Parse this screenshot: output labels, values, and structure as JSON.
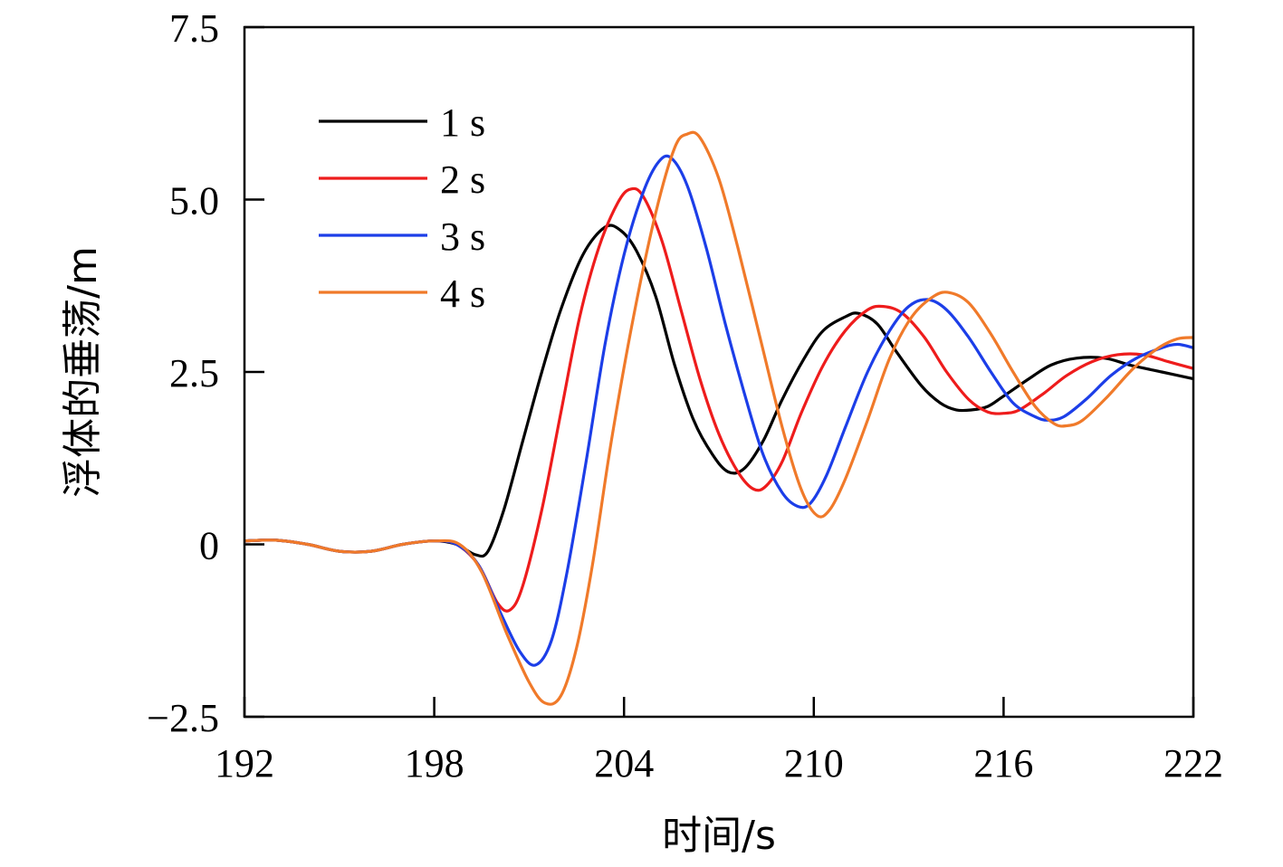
{
  "chart_data": {
    "type": "line",
    "title": "",
    "xlabel": "时间/s",
    "ylabel": "浮体的垂荡/m",
    "xlim": [
      192,
      222
    ],
    "ylim": [
      -2.5,
      7.5
    ],
    "x_ticks": [
      192,
      198,
      204,
      210,
      216,
      222
    ],
    "x_tick_labels": [
      "192",
      "198",
      "204",
      "210",
      "216",
      "222"
    ],
    "y_ticks": [
      -2.5,
      0,
      2.5,
      5.0,
      7.5
    ],
    "y_tick_labels": [
      "−2.5",
      "0",
      "2.5",
      "5.0",
      "7.5"
    ],
    "grid": false,
    "legend_position": "top-left",
    "series": [
      {
        "name": "1 s",
        "color": "#000000",
        "points": [
          [
            192,
            0.05
          ],
          [
            193,
            0.06
          ],
          [
            194,
            0.0
          ],
          [
            195,
            -0.1
          ],
          [
            196,
            -0.1
          ],
          [
            197,
            0.0
          ],
          [
            198,
            0.05
          ],
          [
            198.7,
            0.0
          ],
          [
            199.3,
            -0.15
          ],
          [
            199.7,
            -0.1
          ],
          [
            200.2,
            0.5
          ],
          [
            200.8,
            1.5
          ],
          [
            201.4,
            2.5
          ],
          [
            202.0,
            3.4
          ],
          [
            202.7,
            4.2
          ],
          [
            203.4,
            4.6
          ],
          [
            203.9,
            4.55
          ],
          [
            204.4,
            4.25
          ],
          [
            205.0,
            3.6
          ],
          [
            205.6,
            2.6
          ],
          [
            206.2,
            1.8
          ],
          [
            206.8,
            1.3
          ],
          [
            207.3,
            1.05
          ],
          [
            207.8,
            1.1
          ],
          [
            208.4,
            1.5
          ],
          [
            209.0,
            2.1
          ],
          [
            209.7,
            2.7
          ],
          [
            210.3,
            3.1
          ],
          [
            211.0,
            3.3
          ],
          [
            211.4,
            3.35
          ],
          [
            212.0,
            3.2
          ],
          [
            212.6,
            2.8
          ],
          [
            213.4,
            2.3
          ],
          [
            214.0,
            2.05
          ],
          [
            214.5,
            1.95
          ],
          [
            215.0,
            1.95
          ],
          [
            215.5,
            2.0
          ],
          [
            216.0,
            2.15
          ],
          [
            216.8,
            2.4
          ],
          [
            217.5,
            2.6
          ],
          [
            218.3,
            2.7
          ],
          [
            219.2,
            2.7
          ],
          [
            220.0,
            2.6
          ],
          [
            221.0,
            2.5
          ],
          [
            222.0,
            2.4
          ]
        ]
      },
      {
        "name": "2 s",
        "color": "#ee1c1c",
        "points": [
          [
            192,
            0.05
          ],
          [
            193,
            0.06
          ],
          [
            194,
            0.0
          ],
          [
            195,
            -0.1
          ],
          [
            196,
            -0.1
          ],
          [
            197,
            0.0
          ],
          [
            198,
            0.05
          ],
          [
            198.7,
            0.0
          ],
          [
            199.4,
            -0.3
          ],
          [
            200.0,
            -0.85
          ],
          [
            200.4,
            -0.95
          ],
          [
            200.8,
            -0.6
          ],
          [
            201.4,
            0.5
          ],
          [
            202.0,
            1.9
          ],
          [
            202.6,
            3.3
          ],
          [
            203.2,
            4.3
          ],
          [
            203.8,
            4.95
          ],
          [
            204.2,
            5.15
          ],
          [
            204.6,
            5.05
          ],
          [
            205.2,
            4.4
          ],
          [
            205.8,
            3.4
          ],
          [
            206.4,
            2.4
          ],
          [
            207.0,
            1.6
          ],
          [
            207.6,
            1.05
          ],
          [
            208.1,
            0.8
          ],
          [
            208.5,
            0.85
          ],
          [
            209.0,
            1.2
          ],
          [
            209.6,
            1.9
          ],
          [
            210.3,
            2.6
          ],
          [
            211.0,
            3.1
          ],
          [
            211.7,
            3.4
          ],
          [
            212.2,
            3.45
          ],
          [
            212.8,
            3.35
          ],
          [
            213.5,
            3.0
          ],
          [
            214.2,
            2.5
          ],
          [
            214.9,
            2.1
          ],
          [
            215.5,
            1.92
          ],
          [
            216.0,
            1.9
          ],
          [
            216.5,
            1.95
          ],
          [
            217.3,
            2.2
          ],
          [
            218.0,
            2.45
          ],
          [
            218.8,
            2.65
          ],
          [
            219.6,
            2.75
          ],
          [
            220.4,
            2.75
          ],
          [
            221.2,
            2.65
          ],
          [
            222.0,
            2.55
          ]
        ]
      },
      {
        "name": "3 s",
        "color": "#1c3ee8",
        "points": [
          [
            192,
            0.05
          ],
          [
            193,
            0.06
          ],
          [
            194,
            0.0
          ],
          [
            195,
            -0.1
          ],
          [
            196,
            -0.1
          ],
          [
            197,
            0.0
          ],
          [
            198,
            0.05
          ],
          [
            198.7,
            0.0
          ],
          [
            199.4,
            -0.3
          ],
          [
            200.1,
            -1.0
          ],
          [
            200.7,
            -1.55
          ],
          [
            201.2,
            -1.75
          ],
          [
            201.7,
            -1.4
          ],
          [
            202.2,
            -0.4
          ],
          [
            202.8,
            1.2
          ],
          [
            203.4,
            2.9
          ],
          [
            204.0,
            4.2
          ],
          [
            204.6,
            5.1
          ],
          [
            205.1,
            5.55
          ],
          [
            205.5,
            5.6
          ],
          [
            206.0,
            5.2
          ],
          [
            206.6,
            4.3
          ],
          [
            207.2,
            3.2
          ],
          [
            207.8,
            2.2
          ],
          [
            208.4,
            1.3
          ],
          [
            209.0,
            0.75
          ],
          [
            209.5,
            0.55
          ],
          [
            209.9,
            0.6
          ],
          [
            210.4,
            1.0
          ],
          [
            211.0,
            1.7
          ],
          [
            211.7,
            2.5
          ],
          [
            212.4,
            3.1
          ],
          [
            213.0,
            3.45
          ],
          [
            213.6,
            3.55
          ],
          [
            214.2,
            3.4
          ],
          [
            214.9,
            3.0
          ],
          [
            215.6,
            2.5
          ],
          [
            216.3,
            2.05
          ],
          [
            217.0,
            1.85
          ],
          [
            217.4,
            1.8
          ],
          [
            217.9,
            1.85
          ],
          [
            218.6,
            2.1
          ],
          [
            219.4,
            2.45
          ],
          [
            220.2,
            2.7
          ],
          [
            221.0,
            2.85
          ],
          [
            221.5,
            2.9
          ],
          [
            222.0,
            2.85
          ]
        ]
      },
      {
        "name": "4 s",
        "color": "#f07a2a",
        "points": [
          [
            192,
            0.05
          ],
          [
            193,
            0.06
          ],
          [
            194,
            0.0
          ],
          [
            195,
            -0.1
          ],
          [
            196,
            -0.1
          ],
          [
            197,
            0.0
          ],
          [
            198,
            0.05
          ],
          [
            198.8,
            0.0
          ],
          [
            199.5,
            -0.4
          ],
          [
            200.3,
            -1.3
          ],
          [
            201.0,
            -2.0
          ],
          [
            201.5,
            -2.3
          ],
          [
            202.0,
            -2.2
          ],
          [
            202.5,
            -1.5
          ],
          [
            203.0,
            -0.3
          ],
          [
            203.6,
            1.5
          ],
          [
            204.3,
            3.3
          ],
          [
            205.0,
            4.8
          ],
          [
            205.6,
            5.75
          ],
          [
            206.0,
            5.95
          ],
          [
            206.4,
            5.9
          ],
          [
            207.0,
            5.3
          ],
          [
            207.6,
            4.3
          ],
          [
            208.3,
            3.0
          ],
          [
            209.0,
            1.7
          ],
          [
            209.6,
            0.8
          ],
          [
            210.1,
            0.42
          ],
          [
            210.5,
            0.5
          ],
          [
            211.0,
            0.95
          ],
          [
            211.7,
            1.8
          ],
          [
            212.4,
            2.7
          ],
          [
            213.1,
            3.3
          ],
          [
            213.8,
            3.6
          ],
          [
            214.3,
            3.65
          ],
          [
            214.9,
            3.5
          ],
          [
            215.6,
            3.05
          ],
          [
            216.3,
            2.5
          ],
          [
            217.0,
            2.0
          ],
          [
            217.6,
            1.75
          ],
          [
            218.0,
            1.72
          ],
          [
            218.5,
            1.8
          ],
          [
            219.3,
            2.15
          ],
          [
            220.1,
            2.55
          ],
          [
            220.9,
            2.85
          ],
          [
            221.5,
            2.98
          ],
          [
            222.0,
            3.0
          ]
        ]
      }
    ]
  }
}
